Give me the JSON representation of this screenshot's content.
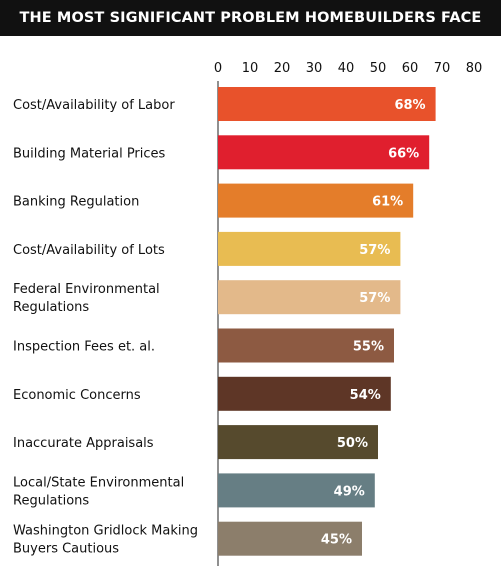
{
  "chart_data": {
    "type": "bar",
    "orientation": "horizontal",
    "title": "THE MOST SIGNIFICANT PROBLEM HOMEBUILDERS FACE",
    "xlim": [
      0,
      80
    ],
    "ticks": [
      "0",
      "10",
      "20",
      "30",
      "40",
      "50",
      "60",
      "70",
      "80"
    ],
    "tick_position": "top",
    "grid": false,
    "categories": [
      [
        "Cost/Availability of Labor"
      ],
      [
        "Building Material Prices"
      ],
      [
        "Banking Regulation"
      ],
      [
        "Cost/Availability of Lots"
      ],
      [
        "Federal Environmental",
        "Regulations"
      ],
      [
        "Inspection Fees et. al."
      ],
      [
        "Economic Concerns"
      ],
      [
        "Inaccurate Appraisals"
      ],
      [
        "Local/State Environmental",
        "Regulations"
      ],
      [
        "Washington Gridlock Making",
        "Buyers Cautious"
      ]
    ],
    "values": [
      68,
      66,
      61,
      57,
      57,
      55,
      54,
      50,
      49,
      45
    ],
    "labels": [
      "68%",
      "66%",
      "61%",
      "57%",
      "57%",
      "55%",
      "54%",
      "50%",
      "49%",
      "45%"
    ],
    "colors": [
      "#e8522b",
      "#e01f2e",
      "#e47d2a",
      "#e8bc52",
      "#e3b98a",
      "#8d5a42",
      "#5e3626",
      "#564a2d",
      "#667e84",
      "#8c7e6b"
    ]
  }
}
